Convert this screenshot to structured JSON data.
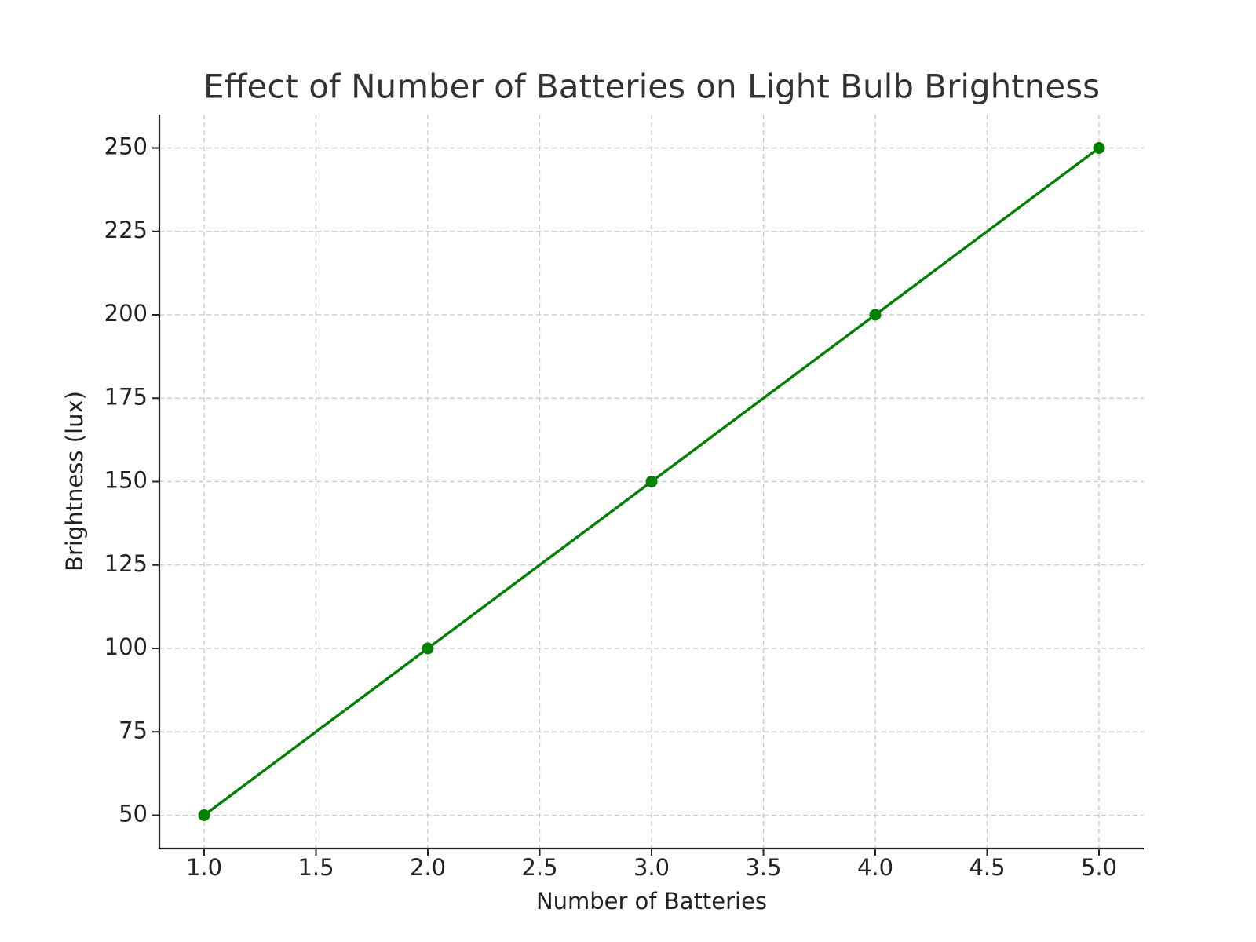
{
  "chart_data": {
    "type": "line",
    "title": "Effect of Number of Batteries on Light Bulb Brightness",
    "xlabel": "Number of Batteries",
    "ylabel": "Brightness (lux)",
    "x": [
      1,
      2,
      3,
      4,
      5
    ],
    "values": [
      50,
      100,
      150,
      200,
      250
    ],
    "color": "#008000",
    "markers": true,
    "xlim": [
      0.8,
      5.2
    ],
    "ylim": [
      40,
      260
    ],
    "xticks": [
      {
        "value": 1,
        "label": "1.0"
      },
      {
        "value": 1.5,
        "label": "1.5"
      },
      {
        "value": 2,
        "label": "2.0"
      },
      {
        "value": 2.5,
        "label": "2.5"
      },
      {
        "value": 3,
        "label": "3.0"
      },
      {
        "value": 3.5,
        "label": "3.5"
      },
      {
        "value": 4,
        "label": "4.0"
      },
      {
        "value": 4.5,
        "label": "4.5"
      },
      {
        "value": 5,
        "label": "5.0"
      }
    ],
    "yticks": [
      50,
      75,
      100,
      125,
      150,
      175,
      200,
      225,
      250
    ],
    "grid": true
  }
}
